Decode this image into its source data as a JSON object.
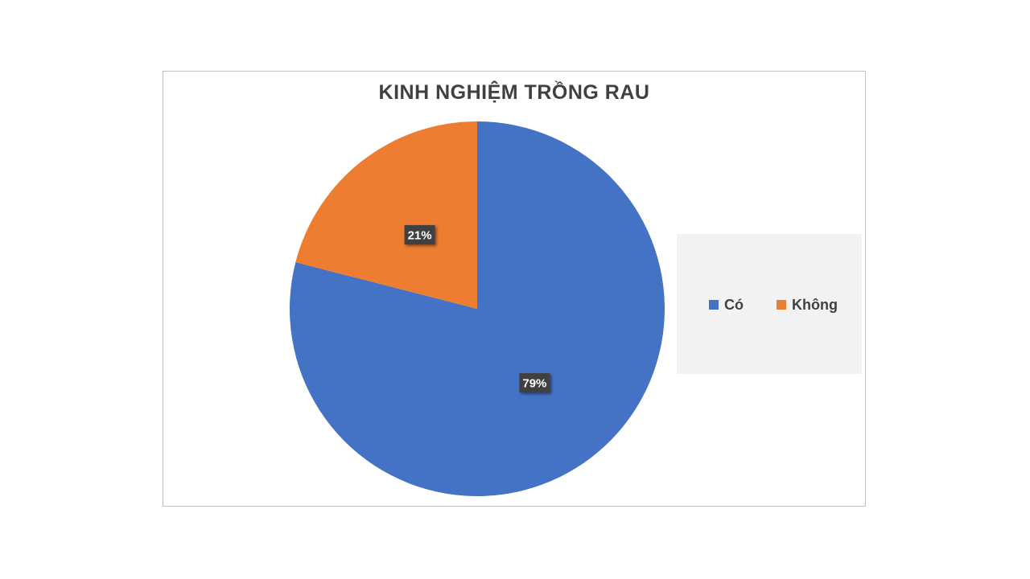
{
  "chart_data": {
    "type": "pie",
    "title": "KINH NGHIỆM TRỒNG RAU",
    "categories": [
      "Có",
      "Không"
    ],
    "values": [
      79,
      21
    ],
    "labels": [
      "79%",
      "21%"
    ],
    "colors": [
      "#4472c4",
      "#ed7d31"
    ],
    "legend_position": "right",
    "start_angle_deg": 0,
    "direction": "clockwise"
  }
}
